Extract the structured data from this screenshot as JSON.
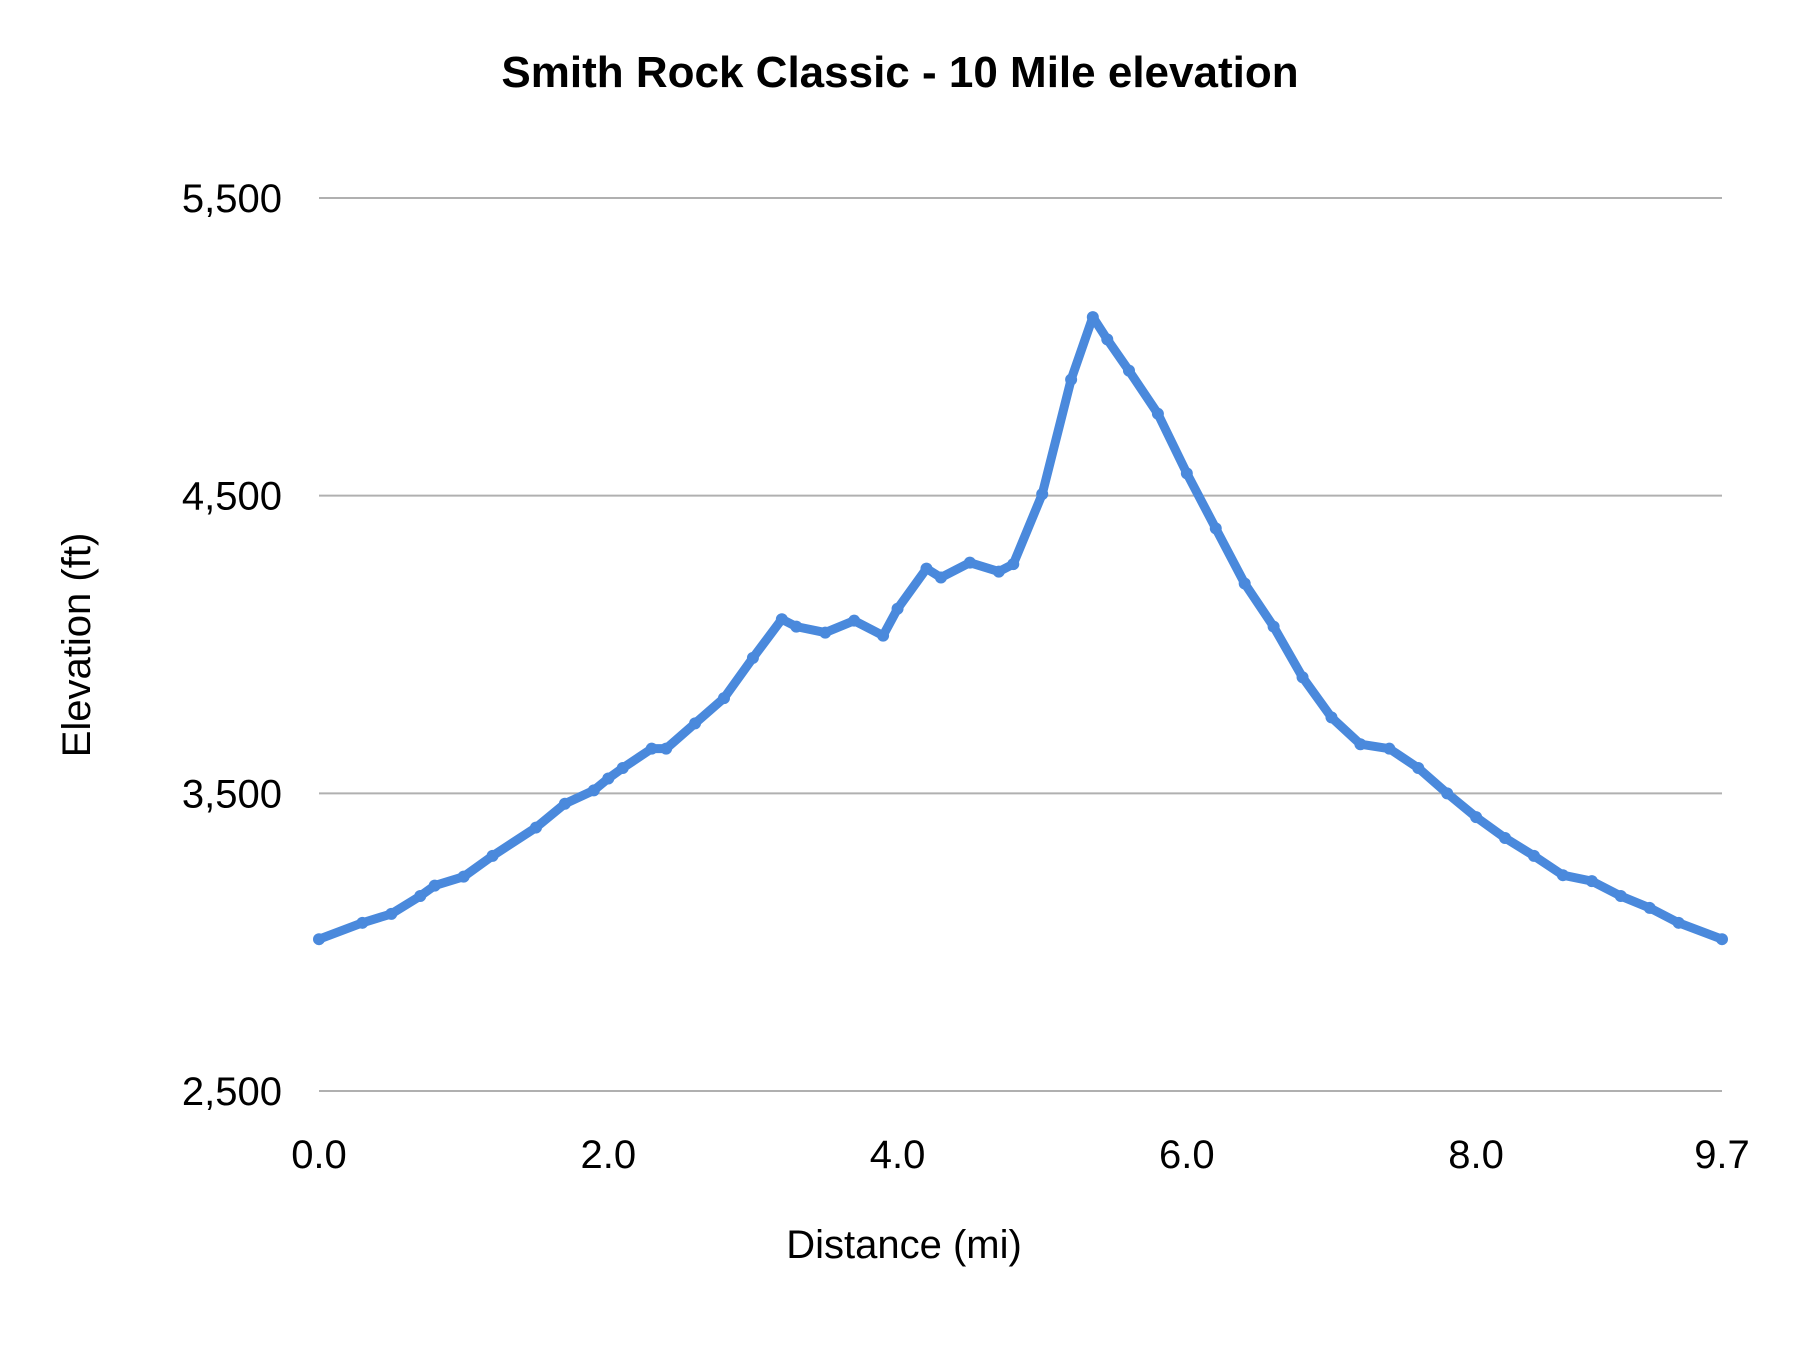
{
  "chart_data": {
    "type": "line",
    "title": "Smith Rock Classic - 10 Mile elevation",
    "xlabel": "Distance (mi)",
    "ylabel": "Elevation (ft)",
    "xlim": [
      0,
      9.7
    ],
    "ylim": [
      2500,
      5500
    ],
    "xticks": [
      "0.0",
      "2.0",
      "4.0",
      "6.0",
      "8.0",
      "9.7"
    ],
    "xtick_values": [
      0,
      2,
      4,
      6,
      8,
      9.7
    ],
    "yticks": [
      "2,500",
      "3,500",
      "4,500",
      "5,500"
    ],
    "ytick_values": [
      2500,
      3500,
      4500,
      5500
    ],
    "grid": "horizontal",
    "color": "#4a89dc",
    "x": [
      0.0,
      0.3,
      0.5,
      0.7,
      0.8,
      1.0,
      1.2,
      1.5,
      1.7,
      1.9,
      2.0,
      2.1,
      2.3,
      2.4,
      2.6,
      2.8,
      3.0,
      3.2,
      3.3,
      3.5,
      3.7,
      3.9,
      4.0,
      4.2,
      4.3,
      4.5,
      4.7,
      4.8,
      5.0,
      5.2,
      5.35,
      5.45,
      5.6,
      5.8,
      6.0,
      6.2,
      6.4,
      6.6,
      6.8,
      7.0,
      7.2,
      7.4,
      7.6,
      7.8,
      8.0,
      8.2,
      8.4,
      8.6,
      8.8,
      9.0,
      9.2,
      9.4,
      9.7
    ],
    "y": [
      3010,
      3065,
      3095,
      3155,
      3190,
      3220,
      3290,
      3385,
      3465,
      3510,
      3550,
      3585,
      3650,
      3650,
      3735,
      3820,
      3955,
      4085,
      4060,
      4040,
      4080,
      4030,
      4120,
      4255,
      4225,
      4275,
      4245,
      4270,
      4505,
      4890,
      5100,
      5025,
      4920,
      4775,
      4575,
      4390,
      4205,
      4060,
      3890,
      3755,
      3665,
      3650,
      3585,
      3500,
      3420,
      3350,
      3290,
      3225,
      3205,
      3155,
      3115,
      3065,
      3010
    ]
  }
}
